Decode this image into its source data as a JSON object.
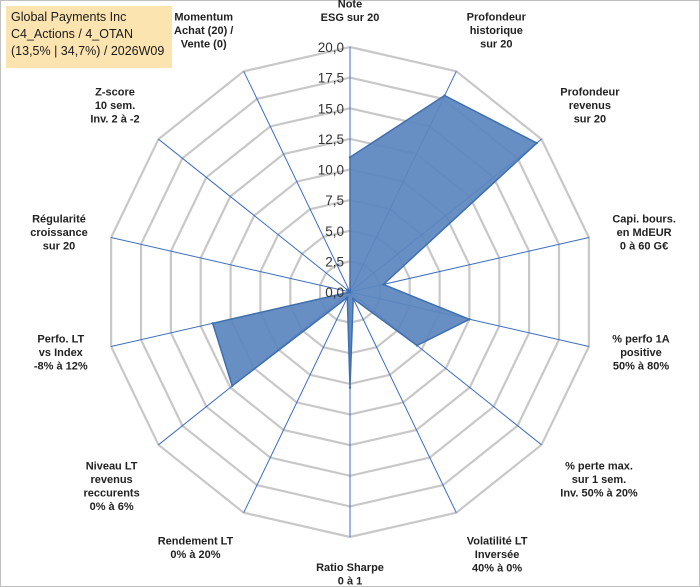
{
  "header": {
    "line1": "Global Payments Inc",
    "line2": "C4_Actions / 4_OTAN",
    "line3": "(13,5% | 34,7%) / 2026W09"
  },
  "colors": {
    "fill": "#5b86bf",
    "stroke": "#3f6fae",
    "spoke": "#3d6ec0",
    "grid": "#c8c8c8"
  },
  "chart_data": {
    "type": "radar",
    "title": "Global Payments Inc",
    "rmin": 0,
    "rmax": 20,
    "ticks": [
      "0,0",
      "2,5",
      "5,0",
      "7,5",
      "10,0",
      "12,5",
      "15,0",
      "17,5",
      "20,0"
    ],
    "axes": [
      {
        "label": [
          "Note",
          "ESG sur 20"
        ],
        "value": 11.0
      },
      {
        "label": [
          "Profondeur",
          "historique",
          "sur 20"
        ],
        "value": 17.8
      },
      {
        "label": [
          "Profondeur",
          "revenus",
          "sur 20"
        ],
        "value": 19.5
      },
      {
        "label": [
          "Capi. bours.",
          "en MdEUR",
          "0 à 60 G€"
        ],
        "value": 2.8
      },
      {
        "label": [
          "% perfo 1A",
          "positive",
          "50% à 80%"
        ],
        "value": 10.0
      },
      {
        "label": [
          "% perte max.",
          "sur 1 sem.",
          "Inv. 50% à 20%"
        ],
        "value": 7.0
      },
      {
        "label": [
          "Volatilité LT",
          "Inversée",
          "40% à 0%"
        ],
        "value": 0.6
      },
      {
        "label": [
          "Ratio Sharpe",
          "0 à 1"
        ],
        "value": 7.8
      },
      {
        "label": [
          "Rendement LT",
          "0% à 20%"
        ],
        "value": 0.5
      },
      {
        "label": [
          "Niveau LT",
          "revenus",
          "reccurents",
          "0% à 6%"
        ],
        "value": 12.3
      },
      {
        "label": [
          "Perfo. LT",
          "vs Index",
          "-8% à 12%"
        ],
        "value": 11.5
      },
      {
        "label": [
          "Régularité",
          "croissance",
          "sur 20"
        ],
        "value": 0.0
      },
      {
        "label": [
          "Z-score",
          "10 sem.",
          "Inv. 2 à -2"
        ],
        "value": 0.3
      },
      {
        "label": [
          "Momentum",
          "Achat (20) /",
          "Vente (0)"
        ],
        "value": 0.0
      }
    ]
  }
}
